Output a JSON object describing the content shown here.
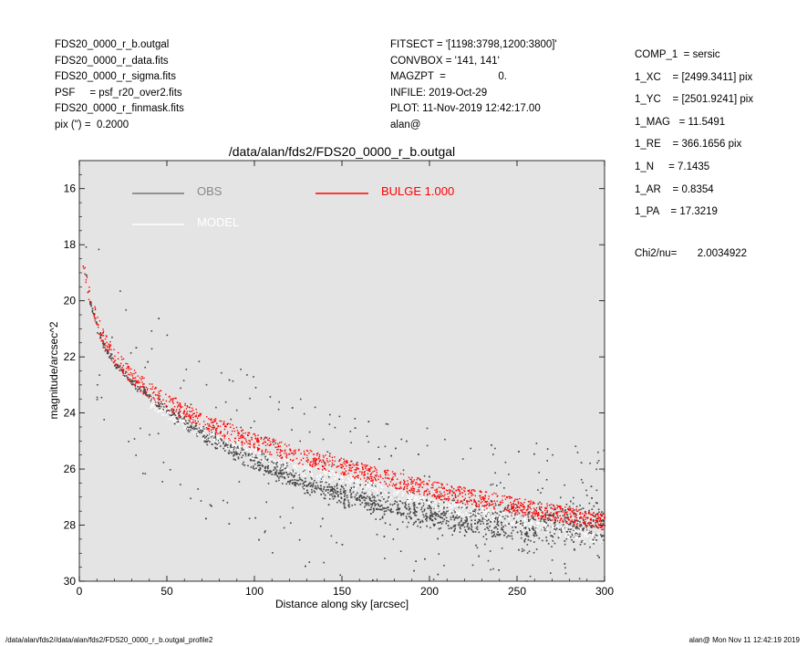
{
  "header": {
    "left": [
      "FDS20_0000_r_b.outgal",
      "FDS20_0000_r_data.fits",
      "FDS20_0000_r_sigma.fits",
      "PSF     = psf_r20_over2.fits",
      "FDS20_0000_r_finmask.fits",
      "pix (\") =  0.2000"
    ],
    "middle": [
      "FITSECT = '[1198:3798,1200:3800]'",
      "CONVBOX = '141, 141'",
      "MAGZPT  =                  0.",
      "INFILE: 2019-Oct-29",
      "PLOT: 11-Nov-2019 12:42:17.00",
      "alan@"
    ],
    "params": [
      "COMP_1  = sersic",
      "1_XC    = [2499.3411] pix",
      "1_YC    = [2501.9241] pix",
      "1_MAG   = 11.5491",
      "1_RE    = 366.1656 pix",
      "1_N     = 7.1435",
      "1_AR    = 0.8354",
      "1_PA    = 17.3219"
    ],
    "chi2": "Chi2/nu=       2.0034922"
  },
  "footer": {
    "left": "/data/alan/fds2//data/alan/fds2/FDS20_0000_r_b.outgal_profile2",
    "right": "alan@  Mon Nov 11 12:42:19 2019"
  },
  "colors": {
    "obs": "#444444",
    "model": "#ffffff",
    "bulge": "#ff0000",
    "plot_bg": "#e4e4e4"
  },
  "chart_data": {
    "type": "scatter",
    "title": "/data/alan/fds2/FDS20_0000_r_b.outgal",
    "xlabel": "Distance along sky [arcsec]",
    "ylabel": "magnitude/arcsec^2",
    "xlim": [
      0,
      300
    ],
    "ylim": [
      30,
      15
    ],
    "y_inverted": true,
    "xticks": [
      "0",
      "50",
      "100",
      "150",
      "200",
      "250",
      "300"
    ],
    "yticks": [
      "16",
      "18",
      "20",
      "22",
      "24",
      "26",
      "28",
      "30"
    ],
    "grid": false,
    "legend": [
      {
        "name": "OBS",
        "color": "#888888",
        "position": "top-left"
      },
      {
        "name": "MODEL",
        "color": "#ffffff",
        "position": "top-left"
      },
      {
        "name": "BULGE  1.000",
        "color": "#ff0000",
        "position": "top-center"
      }
    ],
    "series": [
      {
        "name": "OBS",
        "x": [
          1,
          3,
          5,
          10,
          15,
          20,
          30,
          40,
          50,
          75,
          100,
          125,
          150,
          175,
          200,
          225,
          250,
          275,
          300
        ],
        "y": [
          17.3,
          18.8,
          19.8,
          21.0,
          21.7,
          22.2,
          22.9,
          23.4,
          23.9,
          24.9,
          25.7,
          26.4,
          26.9,
          27.3,
          27.6,
          27.8,
          28.0,
          28.0,
          28.1
        ]
      },
      {
        "name": "MODEL",
        "x": [
          1,
          3,
          5,
          10,
          15,
          20,
          30,
          40,
          50,
          75,
          100,
          125,
          150,
          175,
          200,
          225,
          250,
          275,
          300
        ],
        "y": [
          18.3,
          19.0,
          19.7,
          20.8,
          21.5,
          22.0,
          22.7,
          23.2,
          23.6,
          24.4,
          25.0,
          25.5,
          25.9,
          26.3,
          26.7,
          27.0,
          27.3,
          27.6,
          27.9
        ]
      },
      {
        "name": "BULGE  1.000",
        "x": [
          1,
          3,
          5,
          10,
          15,
          20,
          30,
          40,
          50,
          75,
          100,
          125,
          150,
          175,
          200,
          225,
          250,
          275,
          300
        ],
        "y": [
          18.3,
          19.0,
          19.7,
          20.8,
          21.5,
          22.0,
          22.7,
          23.2,
          23.6,
          24.4,
          25.0,
          25.5,
          25.9,
          26.3,
          26.7,
          27.0,
          27.3,
          27.6,
          27.9
        ]
      }
    ]
  }
}
